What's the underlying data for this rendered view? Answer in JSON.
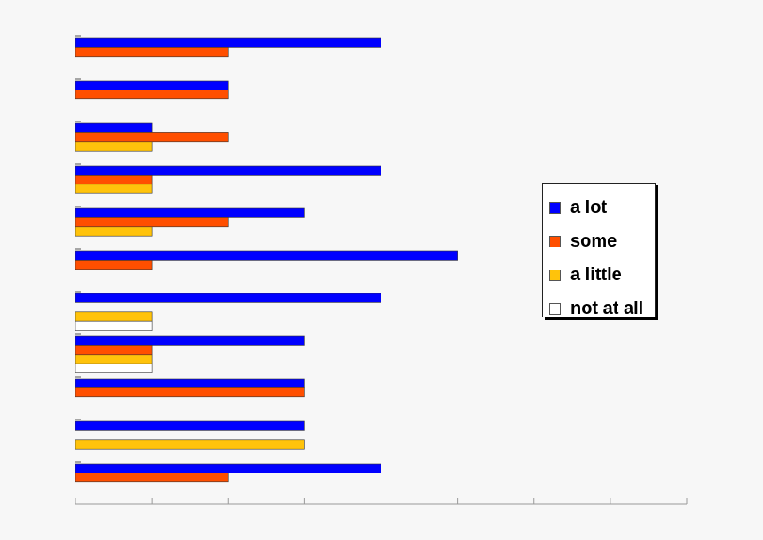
{
  "chart_data": {
    "type": "bar",
    "orientation": "horizontal",
    "grid": false,
    "legend_position": "right",
    "xlim": [
      0,
      8
    ],
    "categories": [
      "",
      "",
      "",
      "",
      "",
      "",
      "",
      "",
      "",
      "",
      ""
    ],
    "series": [
      {
        "name": "a lot",
        "color": "#0000ff",
        "values": [
          4,
          2,
          1,
          4,
          3,
          5,
          4,
          3,
          3,
          3,
          4
        ]
      },
      {
        "name": "some",
        "color": "#ff4f00",
        "values": [
          2,
          2,
          2,
          1,
          2,
          1,
          0,
          1,
          3,
          0,
          2
        ]
      },
      {
        "name": "a little",
        "color": "#ffc30b",
        "values": [
          0,
          0,
          1,
          1,
          1,
          0,
          1,
          1,
          0,
          3,
          0
        ]
      },
      {
        "name": "not at all",
        "color": "#ffffff",
        "values": [
          0,
          0,
          0,
          0,
          0,
          0,
          1,
          1,
          0,
          0,
          0
        ]
      }
    ]
  }
}
